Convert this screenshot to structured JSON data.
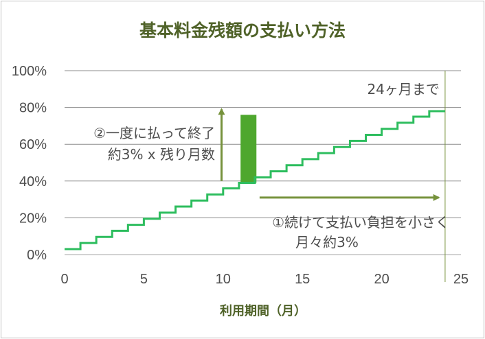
{
  "chart_data": {
    "type": "line",
    "title": "基本料金残額の支払い方法",
    "xlabel": "利用期間（月）",
    "ylabel": "",
    "xlim": [
      0,
      25
    ],
    "ylim": [
      0,
      100
    ],
    "x_ticks": [
      "0",
      "5",
      "10",
      "15",
      "20",
      "25"
    ],
    "y_ticks": [
      "0%",
      "20%",
      "40%",
      "60%",
      "80%",
      "100%"
    ],
    "grid": "horizontal",
    "legend": "none",
    "series": [
      {
        "style": "step",
        "color": "#2dbd5e",
        "x": [
          0,
          1,
          2,
          3,
          4,
          5,
          6,
          7,
          8,
          9,
          10,
          11,
          12,
          13,
          14,
          15,
          16,
          17,
          18,
          19,
          20,
          21,
          22,
          23,
          24
        ],
        "y": [
          3,
          6.3,
          9.6,
          12.9,
          16.2,
          19.5,
          22.8,
          26.1,
          29.4,
          32.7,
          36,
          39,
          42,
          45.3,
          48.6,
          51.9,
          55.2,
          58.5,
          61.8,
          65.1,
          68.4,
          71.7,
          75,
          78,
          78
        ]
      }
    ],
    "bar": {
      "x0": 11.1,
      "x1": 12.1,
      "y0": 39,
      "y1": 76,
      "color": "#4ea72e"
    },
    "reference_line": {
      "x": 24,
      "label": "24ヶ月まで"
    },
    "annotations": {
      "lump_sum": [
        "②一度に払って終了",
        "約3% x 残り月数"
      ],
      "installments": [
        "①続けて支払い負担を小さく",
        "月々約3%"
      ]
    },
    "arrow_color": "#76923c"
  }
}
